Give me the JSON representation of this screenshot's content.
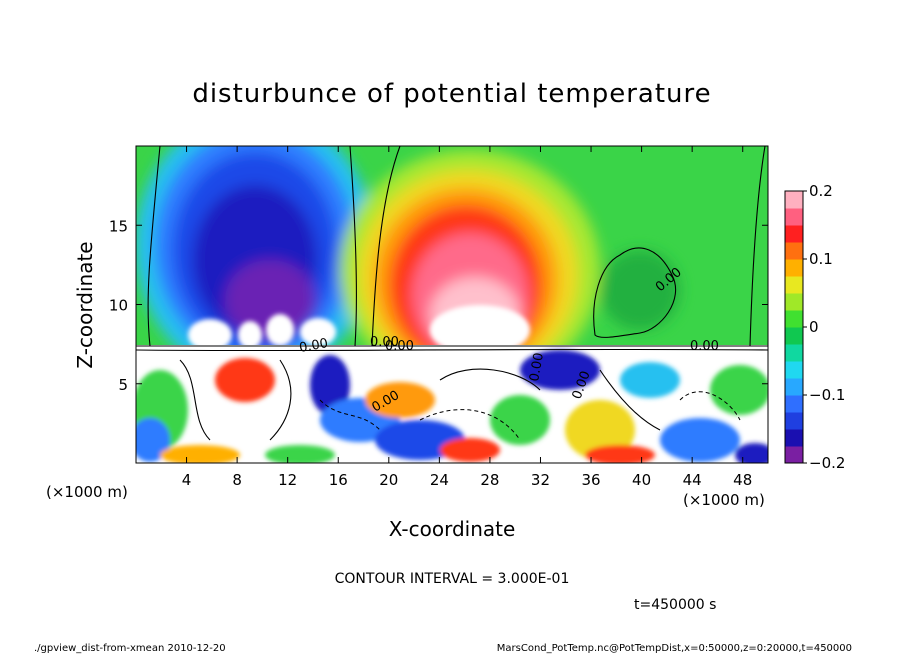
{
  "chart_data": {
    "type": "heatmap",
    "title": "disturbunce of potential temperature",
    "xlabel": "X-coordinate",
    "ylabel": "Z-coordinate",
    "x_unit": "(×1000 m)",
    "x_ticks": [
      4,
      8,
      12,
      16,
      20,
      24,
      28,
      32,
      36,
      40,
      44,
      48
    ],
    "y_ticks": [
      5,
      10,
      15
    ],
    "xlim": [
      0,
      50
    ],
    "ylim": [
      0,
      20
    ],
    "colorbar": {
      "ticks": [
        "0.2",
        "0.1",
        "0",
        "−0.1",
        "−0.2"
      ],
      "tick_values": [
        0.2,
        0.1,
        0,
        -0.1,
        -0.2
      ],
      "range": [
        -0.2,
        0.2
      ],
      "colors": [
        "#7a1fa2",
        "#1a0fb0",
        "#1f3fe0",
        "#2f6fff",
        "#28a8ff",
        "#20d8f0",
        "#10d8a0",
        "#10c850",
        "#40e030",
        "#a0e828",
        "#e8e820",
        "#ffb000",
        "#ff7010",
        "#ff2020",
        "#ff6080",
        "#ffb0c0"
      ]
    },
    "contour_interval_label": "CONTOUR INTERVAL = 3.000E-01",
    "contour_labels": [
      "0.00",
      "0.00",
      "0.00",
      "0.00",
      "0.00",
      "0.00",
      "0.00",
      "0.00"
    ],
    "time_label": "t=450000 s",
    "grid": false
  },
  "footer": {
    "left": "./gpview_dist-from-xmean  2010-12-20",
    "right": "MarsCond_PotTemp.nc@PotTempDist,x=0:50000,z=0:20000,t=450000"
  }
}
